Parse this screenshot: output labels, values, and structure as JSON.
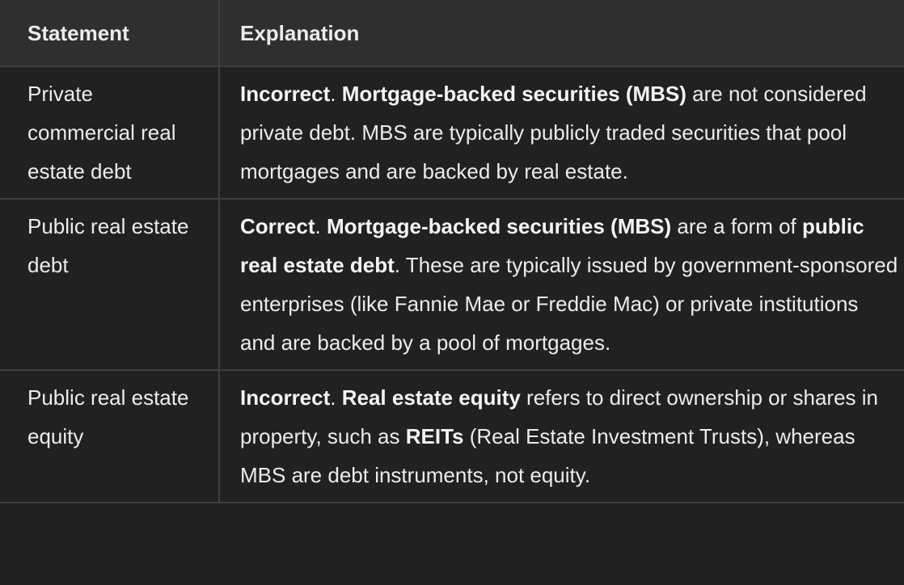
{
  "table": {
    "headers": {
      "statement": "Statement",
      "explanation": "Explanation"
    },
    "rows": [
      {
        "statement": "Private commercial real estate debt",
        "explanation": {
          "verdict": "Incorrect",
          "sep1": ". ",
          "term": "Mortgage-backed securities (MBS)",
          "rest": " are not considered private debt. MBS are typically publicly traded securities that pool mortgages and are backed by real estate."
        }
      },
      {
        "statement": "Public real estate debt",
        "explanation": {
          "verdict": "Correct",
          "sep1": ". ",
          "term": "Mortgage-backed securities (MBS)",
          "mid": " are a form of ",
          "term2": "public real estate debt",
          "rest": ". These are typically issued by government-sponsored enterprises (like Fannie Mae or Freddie Mac) or private institutions and are backed by a pool of mortgages."
        }
      },
      {
        "statement": "Public real estate equity",
        "explanation": {
          "verdict": "Incorrect",
          "sep1": ". ",
          "term": "Real estate equity",
          "mid": " refers to direct ownership or shares in property, such as ",
          "term2": "REITs",
          "rest": " (Real Estate Investment Trusts), whereas MBS are debt instruments, not equity."
        }
      }
    ]
  },
  "colors": {
    "background": "#212121",
    "header_background": "#2f2f2f",
    "border": "#3f3f3f",
    "text": "#ececec"
  }
}
